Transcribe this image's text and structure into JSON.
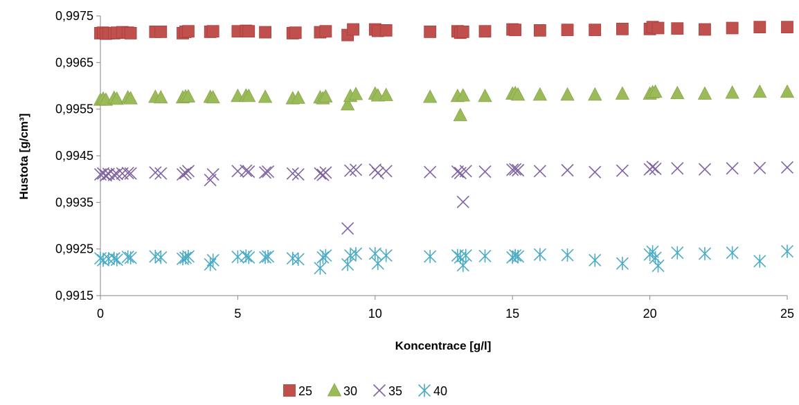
{
  "chart_data": {
    "type": "scatter",
    "title": "",
    "xlabel": "Koncentrace [g/l]",
    "ylabel": "Hustota  [g/cm³]",
    "xlim": [
      0,
      25
    ],
    "ylim": [
      0.9915,
      0.9975
    ],
    "xticks": [
      "0",
      "5",
      "10",
      "15",
      "20",
      "25"
    ],
    "yticks": [
      "0,9915",
      "0,9925",
      "0,9935",
      "0,9945",
      "0,9955",
      "0,9965",
      "0,9975"
    ],
    "grid": false,
    "legend_position": "bottom",
    "series": [
      {
        "name": "25",
        "marker": "square",
        "color": "#C0504D",
        "points": [
          [
            0,
            0.99713
          ],
          [
            0.1,
            0.99714
          ],
          [
            0.2,
            0.99712
          ],
          [
            0.3,
            0.99713
          ],
          [
            0.5,
            0.99713
          ],
          [
            0.6,
            0.99714
          ],
          [
            0.8,
            0.99715
          ],
          [
            1.0,
            0.99714
          ],
          [
            1.1,
            0.99713
          ],
          [
            2.0,
            0.99716
          ],
          [
            2.2,
            0.99716
          ],
          [
            3.0,
            0.99713
          ],
          [
            3.1,
            0.99716
          ],
          [
            3.2,
            0.99717
          ],
          [
            4.0,
            0.99716
          ],
          [
            4.1,
            0.99717
          ],
          [
            5.0,
            0.99717
          ],
          [
            5.3,
            0.99718
          ],
          [
            5.4,
            0.99717
          ],
          [
            6.0,
            0.99715
          ],
          [
            7.0,
            0.99713
          ],
          [
            7.1,
            0.99714
          ],
          [
            8.0,
            0.99715
          ],
          [
            8.2,
            0.99717
          ],
          [
            9.0,
            0.99709
          ],
          [
            9.2,
            0.99721
          ],
          [
            10.0,
            0.99721
          ],
          [
            10.1,
            0.99718
          ],
          [
            10.4,
            0.99719
          ],
          [
            12.0,
            0.99716
          ],
          [
            13.0,
            0.99717
          ],
          [
            13.1,
            0.99714
          ],
          [
            13.2,
            0.99716
          ],
          [
            14.0,
            0.99717
          ],
          [
            15.0,
            0.99721
          ],
          [
            15.1,
            0.9972
          ],
          [
            16.0,
            0.99719
          ],
          [
            17.0,
            0.9972
          ],
          [
            18.0,
            0.9972
          ],
          [
            19.0,
            0.99722
          ],
          [
            20.0,
            0.99722
          ],
          [
            20.1,
            0.99726
          ],
          [
            20.3,
            0.99724
          ],
          [
            21.0,
            0.99723
          ],
          [
            22.0,
            0.99721
          ],
          [
            23.0,
            0.99724
          ],
          [
            24.0,
            0.99726
          ],
          [
            25.0,
            0.99726
          ]
        ]
      },
      {
        "name": "30",
        "marker": "triangle",
        "color": "#9BBB59",
        "points": [
          [
            0,
            0.9957
          ],
          [
            0.1,
            0.99572
          ],
          [
            0.2,
            0.9957
          ],
          [
            0.5,
            0.99574
          ],
          [
            0.6,
            0.99572
          ],
          [
            1.0,
            0.99575
          ],
          [
            1.1,
            0.99573
          ],
          [
            2.0,
            0.99576
          ],
          [
            2.2,
            0.99575
          ],
          [
            3.0,
            0.99575
          ],
          [
            3.1,
            0.99577
          ],
          [
            3.2,
            0.99577
          ],
          [
            4.0,
            0.99576
          ],
          [
            4.1,
            0.99575
          ],
          [
            5.0,
            0.99578
          ],
          [
            5.3,
            0.99579
          ],
          [
            5.4,
            0.99578
          ],
          [
            6.0,
            0.99576
          ],
          [
            7.0,
            0.99573
          ],
          [
            7.2,
            0.99574
          ],
          [
            8.0,
            0.99575
          ],
          [
            8.1,
            0.99573
          ],
          [
            8.2,
            0.99577
          ],
          [
            9.0,
            0.9956
          ],
          [
            9.1,
            0.99578
          ],
          [
            9.3,
            0.99582
          ],
          [
            10.0,
            0.99583
          ],
          [
            10.1,
            0.99579
          ],
          [
            10.4,
            0.9958
          ],
          [
            12.0,
            0.99576
          ],
          [
            13.0,
            0.99578
          ],
          [
            13.1,
            0.99537
          ],
          [
            13.2,
            0.99579
          ],
          [
            14.0,
            0.99578
          ],
          [
            15.0,
            0.99583
          ],
          [
            15.1,
            0.99584
          ],
          [
            15.2,
            0.99581
          ],
          [
            16.0,
            0.99581
          ],
          [
            17.0,
            0.99581
          ],
          [
            18.0,
            0.99581
          ],
          [
            19.0,
            0.99583
          ],
          [
            20.0,
            0.99583
          ],
          [
            20.1,
            0.99586
          ],
          [
            20.2,
            0.99587
          ],
          [
            21.0,
            0.99584
          ],
          [
            22.0,
            0.99583
          ],
          [
            23.0,
            0.99585
          ],
          [
            24.0,
            0.99587
          ],
          [
            25.0,
            0.99587
          ]
        ]
      },
      {
        "name": "35",
        "marker": "x",
        "color": "#8064A2",
        "points": [
          [
            0,
            0.9941
          ],
          [
            0.1,
            0.99412
          ],
          [
            0.2,
            0.99408
          ],
          [
            0.3,
            0.99411
          ],
          [
            0.5,
            0.99409
          ],
          [
            0.6,
            0.99411
          ],
          [
            0.8,
            0.99412
          ],
          [
            1.0,
            0.99413
          ],
          [
            1.1,
            0.99412
          ],
          [
            2.0,
            0.99414
          ],
          [
            2.2,
            0.99412
          ],
          [
            3.0,
            0.9941
          ],
          [
            3.1,
            0.99413
          ],
          [
            3.2,
            0.99417
          ],
          [
            4.0,
            0.99398
          ],
          [
            4.1,
            0.9941
          ],
          [
            5.0,
            0.99417
          ],
          [
            5.3,
            0.99418
          ],
          [
            5.4,
            0.99416
          ],
          [
            6.0,
            0.99414
          ],
          [
            6.1,
            0.99416
          ],
          [
            7.0,
            0.99412
          ],
          [
            7.2,
            0.9941
          ],
          [
            8.0,
            0.99412
          ],
          [
            8.1,
            0.99409
          ],
          [
            8.2,
            0.99414
          ],
          [
            9.0,
            0.99294
          ],
          [
            9.1,
            0.99418
          ],
          [
            9.3,
            0.9942
          ],
          [
            10.0,
            0.9942
          ],
          [
            10.1,
            0.99413
          ],
          [
            10.4,
            0.99417
          ],
          [
            12.0,
            0.99415
          ],
          [
            13.0,
            0.99416
          ],
          [
            13.1,
            0.99413
          ],
          [
            13.2,
            0.99351
          ],
          [
            13.3,
            0.99417
          ],
          [
            14.0,
            0.99416
          ],
          [
            15.0,
            0.9942
          ],
          [
            15.1,
            0.99421
          ],
          [
            15.2,
            0.99419
          ],
          [
            16.0,
            0.99417
          ],
          [
            17.0,
            0.99419
          ],
          [
            18.0,
            0.99415
          ],
          [
            19.0,
            0.99418
          ],
          [
            20.0,
            0.99421
          ],
          [
            20.1,
            0.99426
          ],
          [
            20.2,
            0.99422
          ],
          [
            21.0,
            0.99423
          ],
          [
            22.0,
            0.99421
          ],
          [
            23.0,
            0.99423
          ],
          [
            24.0,
            0.99424
          ],
          [
            25.0,
            0.99425
          ]
        ]
      },
      {
        "name": "40",
        "marker": "asterisk",
        "color": "#4BACC6",
        "points": [
          [
            0,
            0.9923
          ],
          [
            0.1,
            0.99226
          ],
          [
            0.3,
            0.99229
          ],
          [
            0.5,
            0.9923
          ],
          [
            0.6,
            0.99227
          ],
          [
            1.0,
            0.99233
          ],
          [
            1.1,
            0.99231
          ],
          [
            2.0,
            0.99234
          ],
          [
            2.2,
            0.99232
          ],
          [
            3.0,
            0.99229
          ],
          [
            3.1,
            0.99231
          ],
          [
            3.2,
            0.99234
          ],
          [
            4.0,
            0.99217
          ],
          [
            4.1,
            0.99226
          ],
          [
            5.0,
            0.99233
          ],
          [
            5.3,
            0.99235
          ],
          [
            5.4,
            0.99232
          ],
          [
            6.0,
            0.99232
          ],
          [
            6.1,
            0.99234
          ],
          [
            7.0,
            0.9923
          ],
          [
            7.2,
            0.99228
          ],
          [
            8.0,
            0.99209
          ],
          [
            8.1,
            0.99232
          ],
          [
            8.2,
            0.99236
          ],
          [
            9.0,
            0.99217
          ],
          [
            9.1,
            0.99236
          ],
          [
            9.3,
            0.9924
          ],
          [
            10.0,
            0.9924
          ],
          [
            10.1,
            0.99219
          ],
          [
            10.4,
            0.99236
          ],
          [
            12.0,
            0.99234
          ],
          [
            13.0,
            0.99236
          ],
          [
            13.1,
            0.99232
          ],
          [
            13.2,
            0.99215
          ],
          [
            13.3,
            0.99236
          ],
          [
            14.0,
            0.99235
          ],
          [
            15.0,
            0.99232
          ],
          [
            15.1,
            0.99236
          ],
          [
            15.2,
            0.99234
          ],
          [
            16.0,
            0.99238
          ],
          [
            17.0,
            0.99237
          ],
          [
            18.0,
            0.99226
          ],
          [
            19.0,
            0.99219
          ],
          [
            20.0,
            0.99238
          ],
          [
            20.1,
            0.99244
          ],
          [
            20.2,
            0.99231
          ],
          [
            20.3,
            0.99214
          ],
          [
            21.0,
            0.99242
          ],
          [
            22.0,
            0.9924
          ],
          [
            23.0,
            0.99242
          ],
          [
            24.0,
            0.99224
          ],
          [
            25.0,
            0.99245
          ]
        ]
      }
    ]
  }
}
